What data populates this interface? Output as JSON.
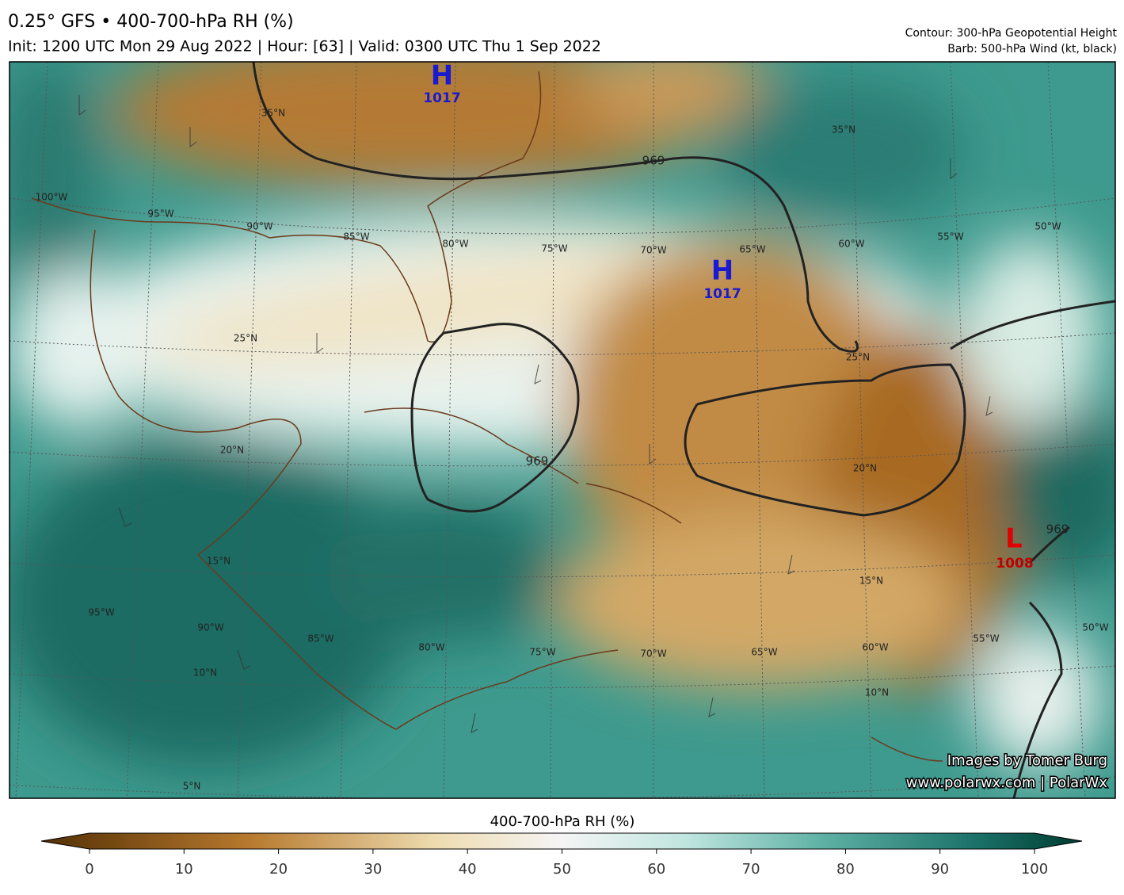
{
  "header": {
    "title": "0.25° GFS • 400-700-hPa RH (%)",
    "subtitle": "Init: 1200 UTC Mon 29 Aug 2022 | Hour: [63] | Valid: 0300 UTC Thu 1 Sep 2022",
    "contour_note": "Contour: 300-hPa Geopotential Height",
    "barb_note": "Barb: 500-hPa Wind (kt, black)"
  },
  "map": {
    "pressure_centers": [
      {
        "letter": "H",
        "value": "1017"
      },
      {
        "letter": "H",
        "value": "1017"
      },
      {
        "letter": "L",
        "value": "1008"
      }
    ],
    "contour_labels": [
      "969",
      "969",
      "969"
    ],
    "lon_labels_top": [
      "100°W",
      "95°W",
      "90°W",
      "85°W",
      "80°W",
      "75°W",
      "70°W",
      "65°W",
      "60°W",
      "55°W",
      "50°W"
    ],
    "lon_labels_bottom": [
      "95°W",
      "90°W",
      "85°W",
      "80°W",
      "75°W",
      "70°W",
      "65°W",
      "60°W",
      "55°W",
      "50°W"
    ],
    "lat_labels": [
      "35°N",
      "35°N",
      "25°N",
      "25°N",
      "20°N",
      "20°N",
      "15°N",
      "15°N",
      "10°N",
      "10°N",
      "5°N"
    ],
    "credit": "Images by Tomer Burg",
    "website": "www.polarwx.com | PolarWx"
  },
  "colorbar": {
    "title": "400-700-hPa RH (%)",
    "ticks": [
      0,
      10,
      20,
      30,
      40,
      50,
      60,
      70,
      80,
      90,
      100
    ]
  }
}
